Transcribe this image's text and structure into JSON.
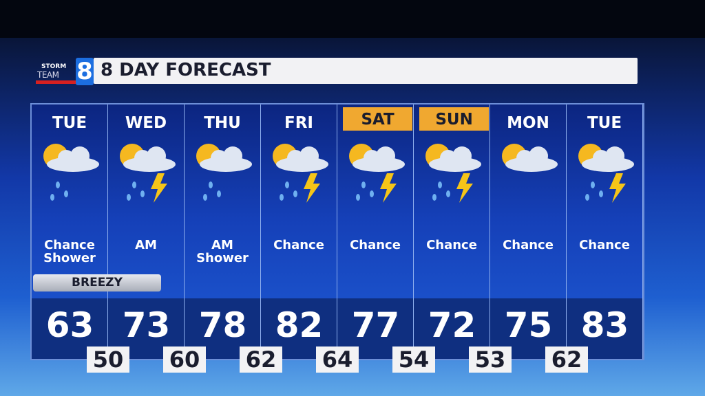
{
  "header": {
    "logo_text_top": "STORM",
    "logo_text_bottom": "TEAM",
    "logo_number": "8",
    "title": "8 DAY FORECAST"
  },
  "colors": {
    "highlight": "#f0a830",
    "panel": "#1540b8",
    "sun": "#f5b820",
    "bolt": "#f5c518"
  },
  "days": [
    {
      "day": "TUE",
      "condition": "Chance Shower",
      "high": "63",
      "icon": "partly-cloudy-rain",
      "highlight": false
    },
    {
      "day": "WED",
      "condition": "AM",
      "high": "73",
      "icon": "partly-cloudy-storm",
      "highlight": false
    },
    {
      "day": "THU",
      "condition": "AM Shower",
      "high": "78",
      "icon": "partly-cloudy-rain",
      "highlight": false
    },
    {
      "day": "FRI",
      "condition": "Chance",
      "high": "82",
      "icon": "partly-cloudy-storm",
      "highlight": false
    },
    {
      "day": "SAT",
      "condition": "Chance",
      "high": "77",
      "icon": "partly-cloudy-storm",
      "highlight": true
    },
    {
      "day": "SUN",
      "condition": "Chance",
      "high": "72",
      "icon": "partly-cloudy-storm",
      "highlight": true
    },
    {
      "day": "MON",
      "condition": "Chance",
      "high": "75",
      "icon": "partly-cloudy",
      "highlight": false
    },
    {
      "day": "TUE",
      "condition": "Chance",
      "high": "83",
      "icon": "partly-cloudy-storm",
      "highlight": false
    }
  ],
  "badge": "BREEZY",
  "lows": [
    "50",
    "60",
    "62",
    "64",
    "54",
    "53",
    "62"
  ]
}
